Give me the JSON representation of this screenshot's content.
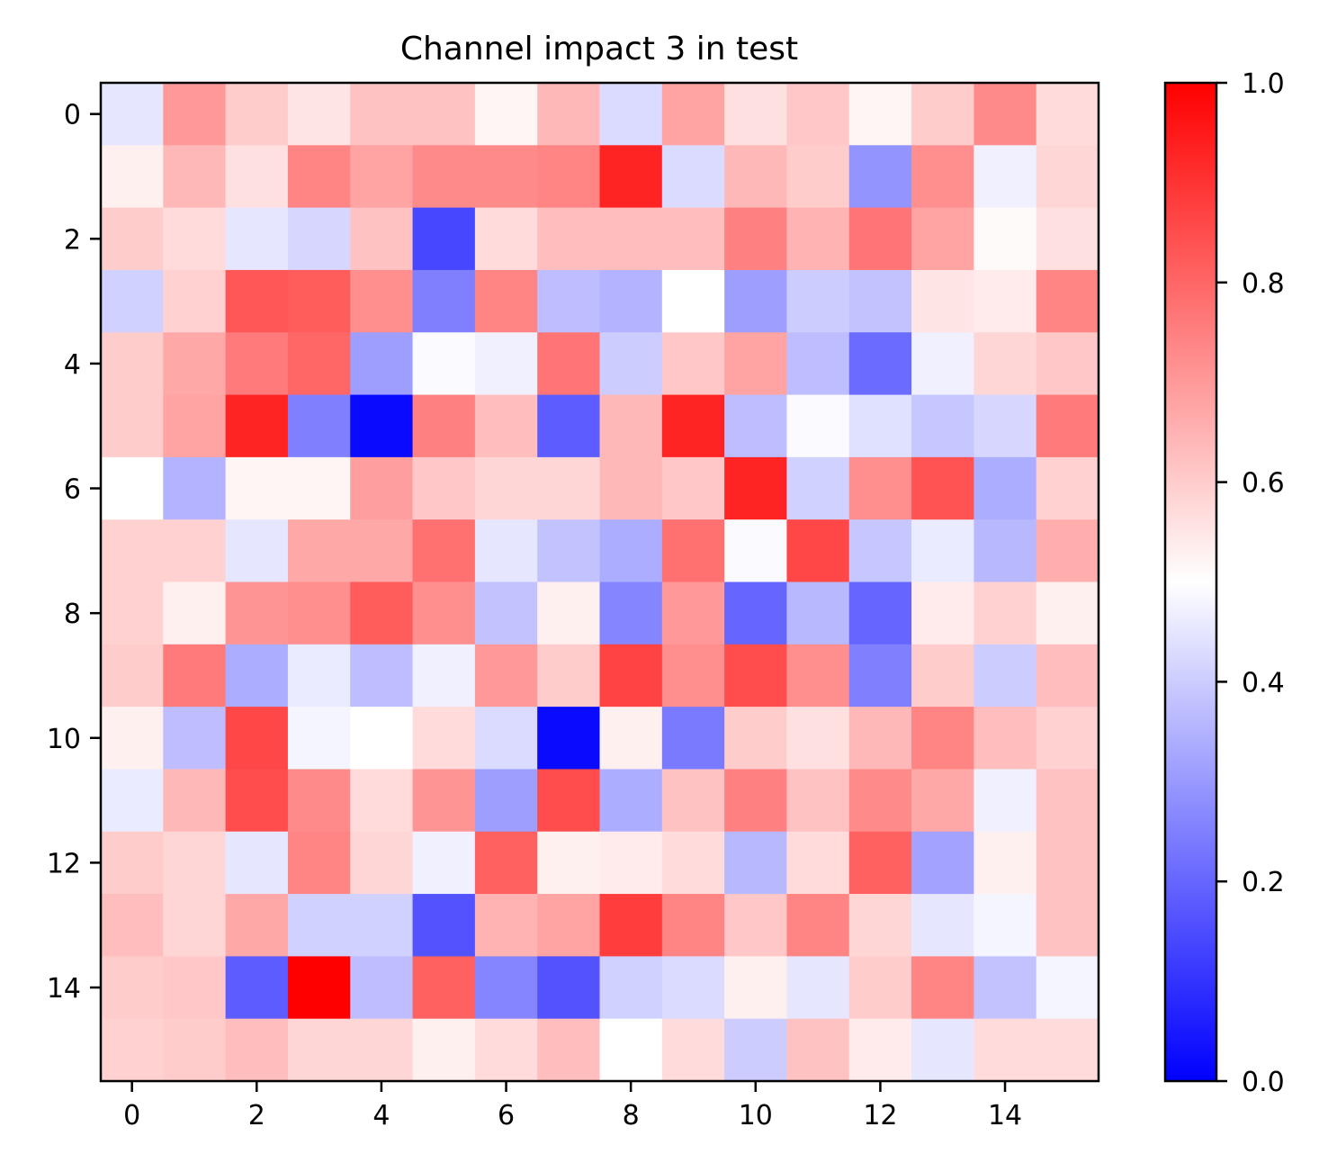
{
  "chart_data": {
    "type": "heatmap",
    "title": "Channel impact 3 in test",
    "xlabel": "",
    "ylabel": "",
    "rows": 16,
    "cols": 16,
    "x_ticks": [
      0,
      2,
      4,
      6,
      8,
      10,
      12,
      14
    ],
    "y_ticks": [
      0,
      2,
      4,
      6,
      8,
      10,
      12,
      14
    ],
    "colormap": "bwr",
    "colormap_stops": [
      "#0000ff",
      "#ffffff",
      "#ff0000"
    ],
    "vmin": 0.0,
    "vmax": 1.0,
    "colorbar_ticks": [
      "0.0",
      "0.2",
      "0.4",
      "0.6",
      "0.8",
      "1.0"
    ],
    "values": [
      [
        0.45,
        0.7,
        0.6,
        0.55,
        0.62,
        0.62,
        0.52,
        0.64,
        0.43,
        0.68,
        0.56,
        0.61,
        0.52,
        0.6,
        0.73,
        0.57
      ],
      [
        0.53,
        0.64,
        0.56,
        0.74,
        0.68,
        0.73,
        0.73,
        0.74,
        0.93,
        0.43,
        0.64,
        0.6,
        0.29,
        0.72,
        0.47,
        0.58
      ],
      [
        0.6,
        0.57,
        0.45,
        0.42,
        0.62,
        0.14,
        0.57,
        0.63,
        0.63,
        0.63,
        0.75,
        0.65,
        0.77,
        0.68,
        0.51,
        0.56
      ],
      [
        0.41,
        0.59,
        0.83,
        0.82,
        0.72,
        0.25,
        0.74,
        0.37,
        0.35,
        0.5,
        0.31,
        0.4,
        0.38,
        0.55,
        0.54,
        0.74
      ],
      [
        0.6,
        0.67,
        0.76,
        0.8,
        0.31,
        0.49,
        0.47,
        0.77,
        0.4,
        0.61,
        0.68,
        0.37,
        0.21,
        0.47,
        0.58,
        0.61
      ],
      [
        0.6,
        0.68,
        0.93,
        0.25,
        0.02,
        0.75,
        0.63,
        0.18,
        0.64,
        0.93,
        0.37,
        0.49,
        0.44,
        0.39,
        0.42,
        0.76
      ],
      [
        0.5,
        0.35,
        0.52,
        0.52,
        0.69,
        0.61,
        0.58,
        0.58,
        0.64,
        0.61,
        0.93,
        0.41,
        0.72,
        0.84,
        0.34,
        0.59
      ],
      [
        0.59,
        0.59,
        0.45,
        0.67,
        0.67,
        0.78,
        0.45,
        0.38,
        0.34,
        0.78,
        0.49,
        0.86,
        0.39,
        0.46,
        0.36,
        0.66
      ],
      [
        0.59,
        0.53,
        0.71,
        0.72,
        0.82,
        0.72,
        0.38,
        0.53,
        0.26,
        0.7,
        0.2,
        0.36,
        0.2,
        0.54,
        0.59,
        0.53
      ],
      [
        0.6,
        0.76,
        0.34,
        0.46,
        0.37,
        0.47,
        0.7,
        0.6,
        0.87,
        0.72,
        0.85,
        0.72,
        0.25,
        0.6,
        0.4,
        0.63
      ],
      [
        0.53,
        0.37,
        0.86,
        0.48,
        0.5,
        0.57,
        0.43,
        0.02,
        0.53,
        0.24,
        0.6,
        0.56,
        0.64,
        0.74,
        0.63,
        0.59
      ],
      [
        0.46,
        0.64,
        0.85,
        0.73,
        0.57,
        0.71,
        0.31,
        0.85,
        0.34,
        0.62,
        0.75,
        0.62,
        0.73,
        0.67,
        0.47,
        0.62
      ],
      [
        0.6,
        0.58,
        0.45,
        0.74,
        0.58,
        0.47,
        0.81,
        0.53,
        0.54,
        0.57,
        0.36,
        0.57,
        0.81,
        0.32,
        0.53,
        0.62
      ],
      [
        0.63,
        0.58,
        0.67,
        0.41,
        0.41,
        0.16,
        0.65,
        0.68,
        0.88,
        0.74,
        0.61,
        0.74,
        0.58,
        0.45,
        0.48,
        0.62
      ],
      [
        0.6,
        0.61,
        0.18,
        1.0,
        0.37,
        0.81,
        0.26,
        0.16,
        0.41,
        0.43,
        0.53,
        0.45,
        0.6,
        0.74,
        0.38,
        0.48
      ],
      [
        0.59,
        0.6,
        0.63,
        0.58,
        0.58,
        0.53,
        0.57,
        0.63,
        0.5,
        0.57,
        0.4,
        0.62,
        0.54,
        0.45,
        0.57,
        0.57
      ]
    ]
  }
}
